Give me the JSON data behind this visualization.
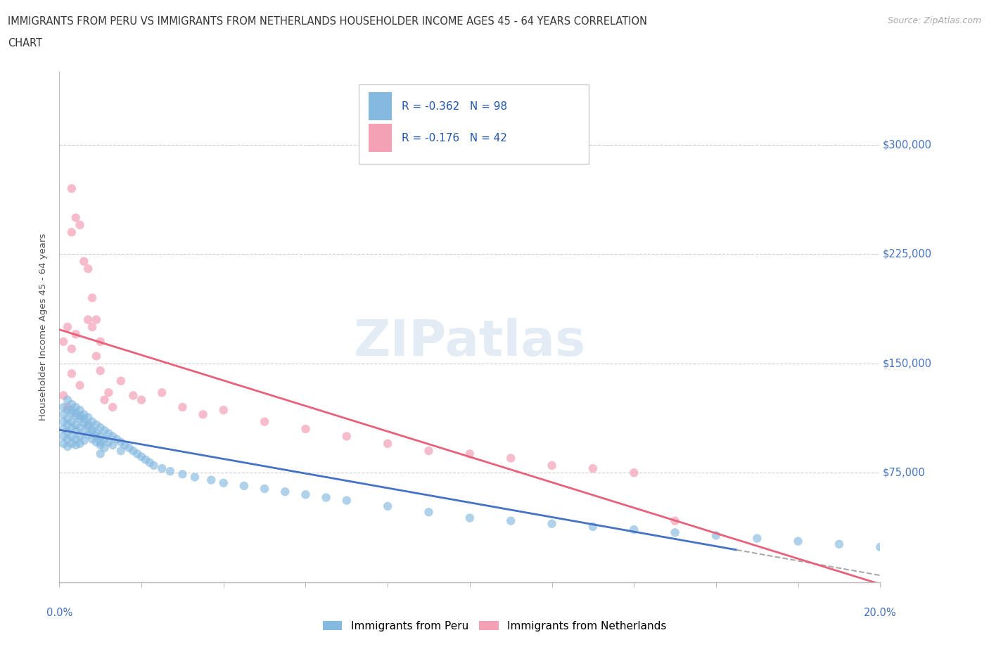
{
  "title_line1": "IMMIGRANTS FROM PERU VS IMMIGRANTS FROM NETHERLANDS HOUSEHOLDER INCOME AGES 45 - 64 YEARS CORRELATION",
  "title_line2": "CHART",
  "source_text": "Source: ZipAtlas.com",
  "ylabel": "Householder Income Ages 45 - 64 years",
  "xlim": [
    0.0,
    0.2
  ],
  "ylim": [
    0,
    350000
  ],
  "ytick_vals": [
    75000,
    150000,
    225000,
    300000
  ],
  "ytick_labels": [
    "$75,000",
    "$150,000",
    "$225,000",
    "$300,000"
  ],
  "peru_color": "#85b9e0",
  "netherlands_color": "#f4a0b5",
  "peru_line_color": "#4472c4",
  "netherlands_line_color": "#e8607a",
  "peru_R": -0.362,
  "peru_N": 98,
  "netherlands_R": -0.176,
  "netherlands_N": 42,
  "watermark_text": "ZIPatlas",
  "legend_peru_label": "Immigrants from Peru",
  "legend_netherlands_label": "Immigrants from Netherlands",
  "peru_scatter_x": [
    0.001,
    0.001,
    0.001,
    0.001,
    0.001,
    0.001,
    0.002,
    0.002,
    0.002,
    0.002,
    0.002,
    0.002,
    0.002,
    0.003,
    0.003,
    0.003,
    0.003,
    0.003,
    0.003,
    0.004,
    0.004,
    0.004,
    0.004,
    0.004,
    0.004,
    0.005,
    0.005,
    0.005,
    0.005,
    0.005,
    0.006,
    0.006,
    0.006,
    0.006,
    0.007,
    0.007,
    0.007,
    0.008,
    0.008,
    0.008,
    0.009,
    0.009,
    0.009,
    0.01,
    0.01,
    0.01,
    0.01,
    0.011,
    0.011,
    0.012,
    0.012,
    0.013,
    0.013,
    0.014,
    0.015,
    0.015,
    0.016,
    0.017,
    0.018,
    0.019,
    0.02,
    0.021,
    0.022,
    0.023,
    0.025,
    0.027,
    0.03,
    0.033,
    0.037,
    0.04,
    0.045,
    0.05,
    0.055,
    0.06,
    0.065,
    0.07,
    0.08,
    0.09,
    0.1,
    0.11,
    0.12,
    0.13,
    0.14,
    0.15,
    0.16,
    0.17,
    0.18,
    0.19,
    0.2,
    0.003,
    0.004,
    0.005,
    0.006,
    0.007,
    0.008,
    0.009,
    0.01,
    0.011
  ],
  "peru_scatter_y": [
    120000,
    115000,
    110000,
    105000,
    100000,
    95000,
    125000,
    118000,
    112000,
    108000,
    103000,
    98000,
    93000,
    122000,
    116000,
    110000,
    106000,
    100000,
    95000,
    120000,
    114000,
    108000,
    104000,
    98000,
    94000,
    118000,
    112000,
    106000,
    100000,
    95000,
    115000,
    109000,
    103000,
    97000,
    113000,
    107000,
    101000,
    110000,
    104000,
    98000,
    108000,
    102000,
    96000,
    106000,
    100000,
    94000,
    88000,
    104000,
    98000,
    102000,
    96000,
    100000,
    94000,
    98000,
    96000,
    90000,
    94000,
    92000,
    90000,
    88000,
    86000,
    84000,
    82000,
    80000,
    78000,
    76000,
    74000,
    72000,
    70000,
    68000,
    66000,
    64000,
    62000,
    60000,
    58000,
    56000,
    52000,
    48000,
    44000,
    42000,
    40000,
    38000,
    36000,
    34000,
    32000,
    30000,
    28000,
    26000,
    24000,
    118000,
    116000,
    114000,
    112000,
    108000,
    104000,
    100000,
    96000,
    92000
  ],
  "netherlands_scatter_x": [
    0.001,
    0.001,
    0.002,
    0.002,
    0.003,
    0.003,
    0.003,
    0.004,
    0.004,
    0.005,
    0.005,
    0.006,
    0.007,
    0.007,
    0.008,
    0.008,
    0.009,
    0.009,
    0.01,
    0.01,
    0.011,
    0.012,
    0.013,
    0.015,
    0.018,
    0.02,
    0.025,
    0.03,
    0.035,
    0.04,
    0.05,
    0.06,
    0.07,
    0.08,
    0.09,
    0.1,
    0.11,
    0.12,
    0.13,
    0.14,
    0.15,
    0.003
  ],
  "netherlands_scatter_y": [
    128000,
    165000,
    175000,
    120000,
    240000,
    270000,
    160000,
    250000,
    170000,
    245000,
    135000,
    220000,
    215000,
    180000,
    195000,
    175000,
    180000,
    155000,
    165000,
    145000,
    125000,
    130000,
    120000,
    138000,
    128000,
    125000,
    130000,
    120000,
    115000,
    118000,
    110000,
    105000,
    100000,
    95000,
    90000,
    88000,
    85000,
    80000,
    78000,
    75000,
    42000,
    143000
  ]
}
